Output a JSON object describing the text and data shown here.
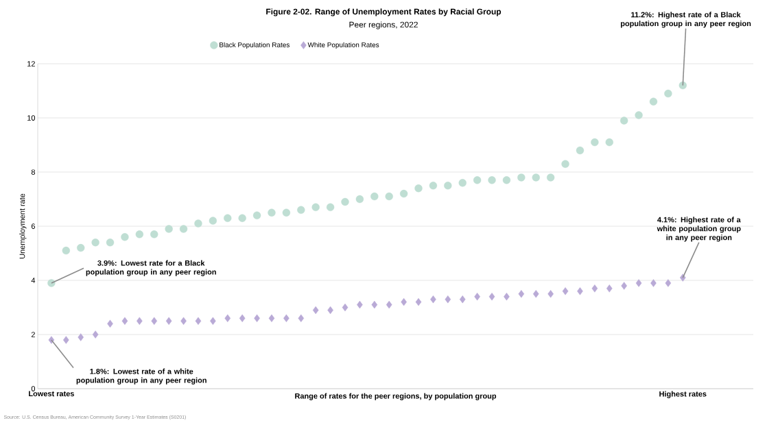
{
  "chart_data": {
    "type": "scatter",
    "title": "Figure 2-02. Range of Unemployment Rates by Racial Group",
    "subtitle": "Peer regions, 2022",
    "xlabel": "Range of rates for the peer regions, by population group",
    "ylabel": "Unemployment rate",
    "categories": [
      "Lowest rates",
      null,
      null,
      null,
      null,
      null,
      null,
      null,
      null,
      null,
      null,
      null,
      null,
      null,
      null,
      null,
      null,
      null,
      null,
      null,
      null,
      null,
      null,
      null,
      null,
      null,
      null,
      null,
      null,
      null,
      null,
      null,
      null,
      null,
      null,
      null,
      null,
      null,
      null,
      null,
      null,
      null,
      null,
      "Highest rates"
    ],
    "series": [
      {
        "name": "Black Population Rates",
        "color": "#bfded3",
        "marker": "circle",
        "values": [
          3.9,
          5.1,
          5.2,
          5.4,
          5.4,
          5.6,
          5.7,
          5.7,
          5.9,
          5.9,
          6.1,
          6.2,
          6.3,
          6.3,
          6.4,
          6.5,
          6.5,
          6.6,
          6.7,
          6.7,
          6.9,
          7.0,
          7.1,
          7.1,
          7.2,
          7.4,
          7.5,
          7.5,
          7.6,
          7.7,
          7.7,
          7.7,
          7.8,
          7.8,
          7.8,
          8.3,
          8.8,
          9.1,
          9.1,
          9.9,
          10.1,
          10.6,
          10.9,
          11.2
        ]
      },
      {
        "name": "White Population Rates",
        "color": "#b9aad6",
        "marker": "diamond",
        "values": [
          1.8,
          1.8,
          1.9,
          2.0,
          2.4,
          2.5,
          2.5,
          2.5,
          2.5,
          2.5,
          2.5,
          2.5,
          2.6,
          2.6,
          2.6,
          2.6,
          2.6,
          2.6,
          2.9,
          2.9,
          3.0,
          3.1,
          3.1,
          3.1,
          3.2,
          3.2,
          3.3,
          3.3,
          3.3,
          3.4,
          3.4,
          3.4,
          3.5,
          3.5,
          3.5,
          3.6,
          3.6,
          3.7,
          3.7,
          3.8,
          3.9,
          3.9,
          3.9,
          4.1
        ]
      }
    ],
    "ylim": [
      0,
      12
    ],
    "yticks": [
      0,
      2,
      4,
      6,
      8,
      10,
      12
    ],
    "grid": "y",
    "legend": "top",
    "annotations": [
      {
        "text": "11.2%:  Highest rate of a Black population group in any peer region",
        "x": "Highest rates",
        "y": 11.2
      },
      {
        "text": "3.9%:  Lowest rate for a Black population group in any peer region",
        "x": "Lowest rates",
        "y": 3.9
      },
      {
        "text": "4.1%:  Highest rate of a white population group in any peer region",
        "x": "Highest rates",
        "y": 4.1
      },
      {
        "text": "1.8%:  Lowest rate of a white population group in any peer region",
        "x": "Lowest rates",
        "y": 1.8
      },
      "Source: U.S. Census Bureau, American Community Survey 1-Year Estimates (S0201)"
    ]
  }
}
